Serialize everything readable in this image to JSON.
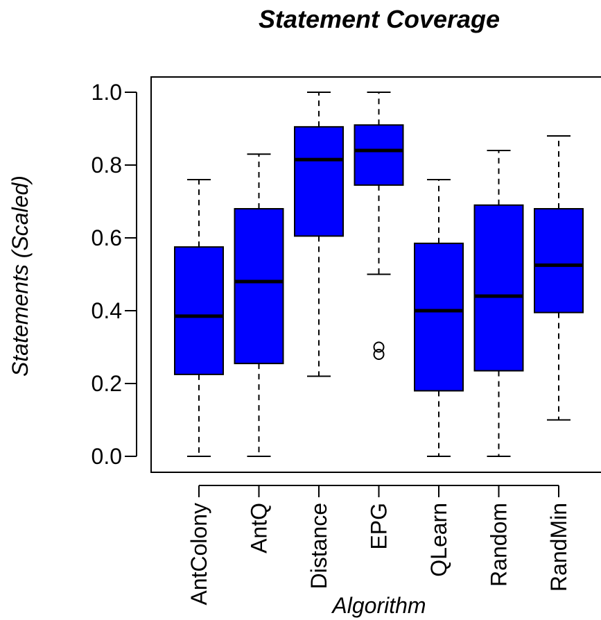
{
  "chart_data": {
    "type": "boxplot",
    "title": "Statement Coverage",
    "xlabel": "Algorithm",
    "ylabel": "Statements (Scaled)",
    "ylim": [
      0,
      1.0
    ],
    "yticks": [
      "0.0",
      "0.2",
      "0.4",
      "0.6",
      "0.8",
      "1.0"
    ],
    "categories": [
      "AntColony",
      "AntQ",
      "Distance",
      "EPG",
      "QLearn",
      "Random",
      "RandMin"
    ],
    "box_color": "#0000ff",
    "boxes": [
      {
        "name": "AntColony",
        "min": 0.0,
        "q1": 0.225,
        "median": 0.385,
        "q3": 0.575,
        "max": 0.76,
        "outliers": []
      },
      {
        "name": "AntQ",
        "min": 0.0,
        "q1": 0.255,
        "median": 0.48,
        "q3": 0.68,
        "max": 0.83,
        "outliers": []
      },
      {
        "name": "Distance",
        "min": 0.22,
        "q1": 0.605,
        "median": 0.815,
        "q3": 0.905,
        "max": 1.0,
        "outliers": []
      },
      {
        "name": "EPG",
        "min": 0.5,
        "q1": 0.745,
        "median": 0.84,
        "q3": 0.91,
        "max": 1.0,
        "outliers": [
          0.3,
          0.28
        ]
      },
      {
        "name": "QLearn",
        "min": 0.0,
        "q1": 0.18,
        "median": 0.4,
        "q3": 0.585,
        "max": 0.76,
        "outliers": []
      },
      {
        "name": "Random",
        "min": 0.0,
        "q1": 0.235,
        "median": 0.44,
        "q3": 0.69,
        "max": 0.84,
        "outliers": []
      },
      {
        "name": "RandMin",
        "min": 0.1,
        "q1": 0.395,
        "median": 0.525,
        "q3": 0.68,
        "max": 0.88,
        "outliers": []
      }
    ]
  }
}
